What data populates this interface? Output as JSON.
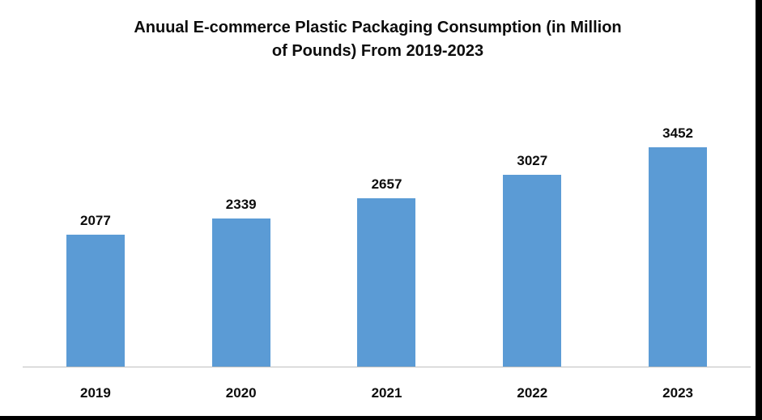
{
  "chart_data": {
    "type": "bar",
    "title": "Anuual E-commerce Plastic Packaging Consumption (in Million of Pounds) From 2019-2023",
    "categories": [
      "2019",
      "2020",
      "2021",
      "2022",
      "2023"
    ],
    "values": [
      2077,
      2339,
      2657,
      3027,
      3452
    ],
    "xlabel": "",
    "ylabel": "",
    "ylim": [
      0,
      4500
    ],
    "grid": false,
    "legend": false,
    "bar_color": "#5b9bd5",
    "axis_line_color": "#bfbfbf",
    "data_labels_shown": true
  }
}
